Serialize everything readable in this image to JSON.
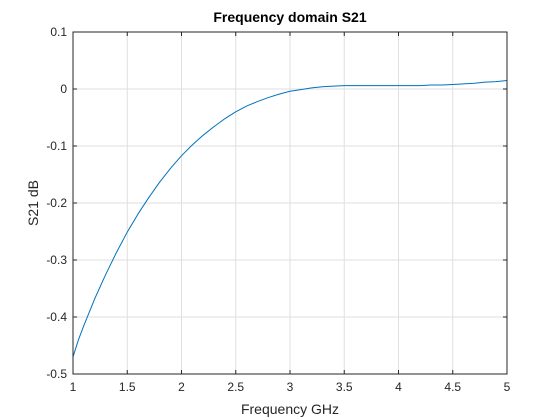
{
  "chart_data": {
    "type": "line",
    "title": "Frequency domain S21",
    "xlabel": "Frequency GHz",
    "ylabel": "S21 dB",
    "xlim": [
      1,
      5
    ],
    "ylim": [
      -0.5,
      0.1
    ],
    "grid": true,
    "x_ticks": [
      1,
      1.5,
      2,
      2.5,
      3,
      3.5,
      4,
      4.5,
      5
    ],
    "x_tick_labels": [
      "1",
      "1.5",
      "2",
      "2.5",
      "3",
      "3.5",
      "4",
      "4.5",
      "5"
    ],
    "y_ticks": [
      -0.5,
      -0.4,
      -0.3,
      -0.2,
      -0.1,
      0,
      0.1
    ],
    "y_tick_labels": [
      "-0.5",
      "-0.4",
      "-0.3",
      "-0.2",
      "-0.1",
      "0",
      "0.1"
    ],
    "series": [
      {
        "color": "#0072BD",
        "x": [
          1.0,
          1.05,
          1.1,
          1.2,
          1.3,
          1.4,
          1.5,
          1.6,
          1.7,
          1.8,
          1.9,
          2.0,
          2.1,
          2.2,
          2.3,
          2.4,
          2.5,
          2.6,
          2.7,
          2.8,
          2.9,
          3.0,
          3.1,
          3.2,
          3.3,
          3.4,
          3.5,
          3.6,
          3.7,
          3.8,
          3.9,
          4.0,
          4.1,
          4.2,
          4.3,
          4.4,
          4.5,
          4.6,
          4.7,
          4.8,
          4.9,
          5.0
        ],
        "y": [
          -0.47,
          -0.44,
          -0.415,
          -0.368,
          -0.326,
          -0.287,
          -0.251,
          -0.219,
          -0.19,
          -0.163,
          -0.139,
          -0.117,
          -0.098,
          -0.081,
          -0.066,
          -0.052,
          -0.04,
          -0.03,
          -0.022,
          -0.015,
          -0.009,
          -0.004,
          -0.001,
          0.002,
          0.004,
          0.005,
          0.006,
          0.006,
          0.006,
          0.006,
          0.006,
          0.006,
          0.006,
          0.006,
          0.007,
          0.007,
          0.008,
          0.009,
          0.01,
          0.012,
          0.013,
          0.015
        ]
      }
    ]
  }
}
